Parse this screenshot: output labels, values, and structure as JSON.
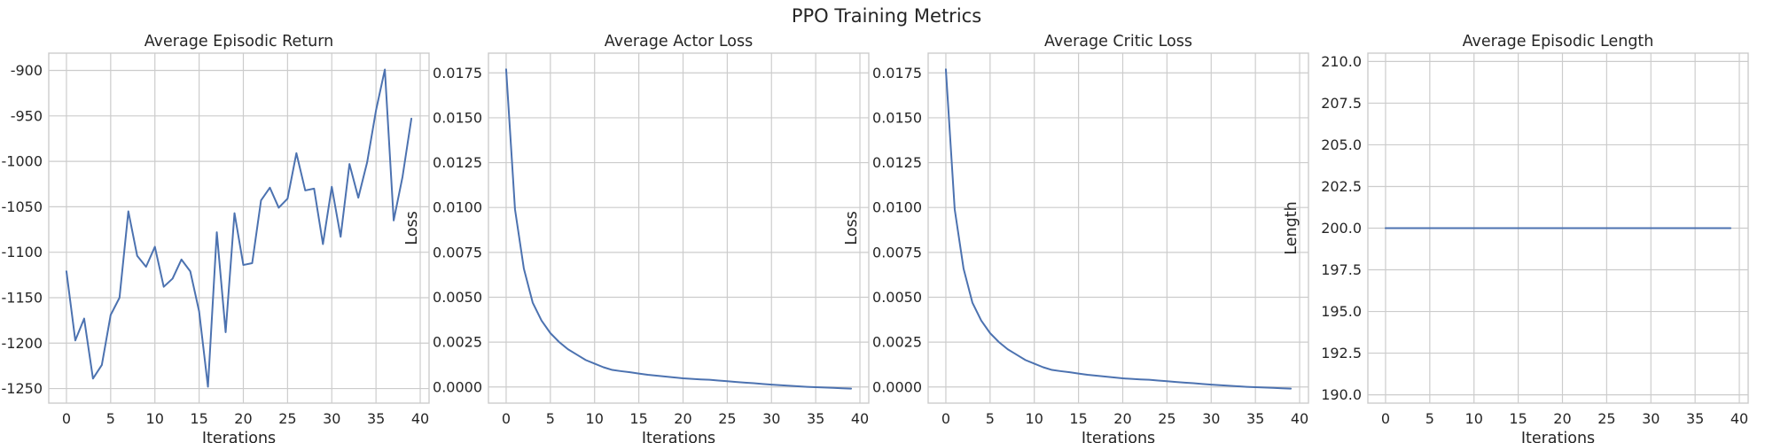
{
  "figure": {
    "title": "PPO Training Metrics"
  },
  "chart_data": [
    {
      "type": "line",
      "title": "Average Episodic Return",
      "xlabel": "Iterations",
      "ylabel": "",
      "grid": true,
      "xlim": [
        -2,
        41
      ],
      "ylim": [
        -1266,
        -881
      ],
      "xticks": [
        0,
        5,
        10,
        15,
        20,
        25,
        30,
        35,
        40
      ],
      "yticks": [
        -1250,
        -1200,
        -1150,
        -1100,
        -1050,
        -1000,
        -950,
        -900
      ],
      "ytick_labels": [
        "-1250",
        "-1200",
        "-1150",
        "-1100",
        "-1050",
        "-1000",
        "-950",
        "-900"
      ],
      "series": [
        {
          "color": "#4c72b0",
          "x": [
            0,
            1,
            2,
            3,
            4,
            5,
            6,
            7,
            8,
            9,
            10,
            11,
            12,
            13,
            14,
            15,
            16,
            17,
            18,
            19,
            20,
            21,
            22,
            23,
            24,
            25,
            26,
            27,
            28,
            29,
            30,
            31,
            32,
            33,
            34,
            35,
            36,
            37,
            38,
            39
          ],
          "y": [
            -1121,
            -1197,
            -1173,
            -1239,
            -1224,
            -1169,
            -1150,
            -1055,
            -1104,
            -1116,
            -1094,
            -1138,
            -1129,
            -1108,
            -1121,
            -1165,
            -1248,
            -1078,
            -1188,
            -1057,
            -1114,
            -1112,
            -1043,
            -1029,
            -1051,
            -1041,
            -991,
            -1032,
            -1030,
            -1091,
            -1028,
            -1083,
            -1003,
            -1040,
            -1001,
            -944,
            -899,
            -1065,
            -1017,
            -953
          ]
        }
      ]
    },
    {
      "type": "line",
      "title": "Average Actor Loss",
      "xlabel": "Iterations",
      "ylabel": "Loss",
      "grid": true,
      "xlim": [
        -2,
        41
      ],
      "ylim": [
        -0.0009,
        0.0186
      ],
      "xticks": [
        0,
        5,
        10,
        15,
        20,
        25,
        30,
        35,
        40
      ],
      "yticks": [
        0.0,
        0.0025,
        0.005,
        0.0075,
        0.01,
        0.0125,
        0.015,
        0.0175
      ],
      "ytick_labels": [
        "0.0000",
        "0.0025",
        "0.0050",
        "0.0075",
        "0.0100",
        "0.0125",
        "0.0150",
        "0.0175"
      ],
      "series": [
        {
          "color": "#4c72b0",
          "x": [
            0,
            1,
            2,
            3,
            4,
            5,
            6,
            7,
            8,
            9,
            10,
            11,
            12,
            13,
            14,
            15,
            16,
            17,
            18,
            19,
            20,
            21,
            22,
            23,
            24,
            25,
            26,
            27,
            28,
            29,
            30,
            31,
            32,
            33,
            34,
            35,
            36,
            37,
            38,
            39
          ],
          "y": [
            0.0177,
            0.0099,
            0.0066,
            0.0047,
            0.0037,
            0.003,
            0.0025,
            0.0021,
            0.0018,
            0.0015,
            0.0013,
            0.0011,
            0.00095,
            0.00088,
            0.00082,
            0.00075,
            0.00068,
            0.00063,
            0.00058,
            0.00053,
            0.00048,
            0.00045,
            0.00042,
            0.0004,
            0.00036,
            0.00032,
            0.00028,
            0.00024,
            0.00021,
            0.00017,
            0.00013,
            0.0001,
            7e-05,
            4e-05,
            1e-05,
            -1e-05,
            -3e-05,
            -5e-05,
            -7e-05,
            -9e-05
          ]
        }
      ]
    },
    {
      "type": "line",
      "title": "Average Critic Loss",
      "xlabel": "Iterations",
      "ylabel": "Loss",
      "grid": true,
      "xlim": [
        -2,
        41
      ],
      "ylim": [
        -0.0009,
        0.0186
      ],
      "xticks": [
        0,
        5,
        10,
        15,
        20,
        25,
        30,
        35,
        40
      ],
      "yticks": [
        0.0,
        0.0025,
        0.005,
        0.0075,
        0.01,
        0.0125,
        0.015,
        0.0175
      ],
      "ytick_labels": [
        "0.0000",
        "0.0025",
        "0.0050",
        "0.0075",
        "0.0100",
        "0.0125",
        "0.0150",
        "0.0175"
      ],
      "series": [
        {
          "color": "#4c72b0",
          "x": [
            0,
            1,
            2,
            3,
            4,
            5,
            6,
            7,
            8,
            9,
            10,
            11,
            12,
            13,
            14,
            15,
            16,
            17,
            18,
            19,
            20,
            21,
            22,
            23,
            24,
            25,
            26,
            27,
            28,
            29,
            30,
            31,
            32,
            33,
            34,
            35,
            36,
            37,
            38,
            39
          ],
          "y": [
            0.0177,
            0.0099,
            0.0066,
            0.0047,
            0.0037,
            0.003,
            0.0025,
            0.0021,
            0.0018,
            0.0015,
            0.0013,
            0.0011,
            0.00095,
            0.00088,
            0.00082,
            0.00075,
            0.00068,
            0.00063,
            0.00058,
            0.00053,
            0.00048,
            0.00045,
            0.00042,
            0.0004,
            0.00036,
            0.00032,
            0.00028,
            0.00024,
            0.00021,
            0.00017,
            0.00013,
            0.0001,
            7e-05,
            4e-05,
            1e-05,
            -1e-05,
            -3e-05,
            -5e-05,
            -7e-05,
            -9e-05
          ]
        }
      ]
    },
    {
      "type": "line",
      "title": "Average Episodic Length",
      "xlabel": "Iterations",
      "ylabel": "Length",
      "grid": true,
      "xlim": [
        -2,
        41
      ],
      "ylim": [
        189.5,
        210.5
      ],
      "xticks": [
        0,
        5,
        10,
        15,
        20,
        25,
        30,
        35,
        40
      ],
      "yticks": [
        190.0,
        192.5,
        195.0,
        197.5,
        200.0,
        202.5,
        205.0,
        207.5,
        210.0
      ],
      "ytick_labels": [
        "190.0",
        "192.5",
        "195.0",
        "197.5",
        "200.0",
        "202.5",
        "205.0",
        "207.5",
        "210.0"
      ],
      "series": [
        {
          "color": "#4c72b0",
          "x": [
            0,
            1,
            2,
            3,
            4,
            5,
            6,
            7,
            8,
            9,
            10,
            11,
            12,
            13,
            14,
            15,
            16,
            17,
            18,
            19,
            20,
            21,
            22,
            23,
            24,
            25,
            26,
            27,
            28,
            29,
            30,
            31,
            32,
            33,
            34,
            35,
            36,
            37,
            38,
            39
          ],
          "y": [
            200,
            200,
            200,
            200,
            200,
            200,
            200,
            200,
            200,
            200,
            200,
            200,
            200,
            200,
            200,
            200,
            200,
            200,
            200,
            200,
            200,
            200,
            200,
            200,
            200,
            200,
            200,
            200,
            200,
            200,
            200,
            200,
            200,
            200,
            200,
            200,
            200,
            200,
            200,
            200
          ]
        }
      ]
    }
  ]
}
